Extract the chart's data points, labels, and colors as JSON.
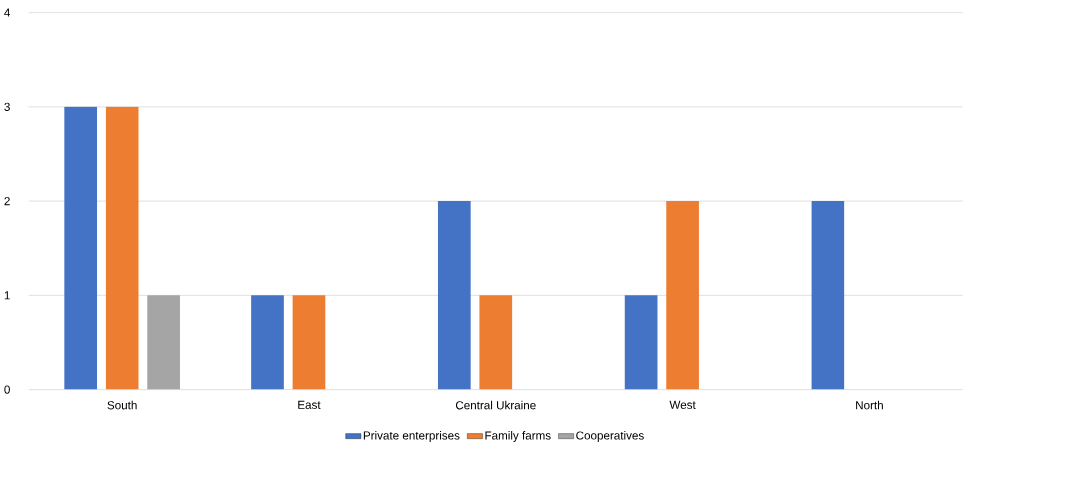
{
  "chart_data": {
    "type": "bar",
    "categories": [
      "South",
      "East",
      "Central Ukraine",
      "West",
      "North"
    ],
    "series": [
      {
        "name": "Private enterprises",
        "color": "#4472c4",
        "values": [
          3,
          1,
          2,
          1,
          2
        ]
      },
      {
        "name": "Family farms",
        "color": "#ed7d31",
        "values": [
          3,
          1,
          1,
          2,
          0
        ]
      },
      {
        "name": "Cooperatives",
        "color": "#a5a5a5",
        "values": [
          1,
          0,
          0,
          0,
          0
        ]
      }
    ],
    "ylim": [
      0,
      4
    ],
    "yticks": [
      0,
      1,
      2,
      3,
      4
    ],
    "grid": "y",
    "legend": "bottom"
  }
}
